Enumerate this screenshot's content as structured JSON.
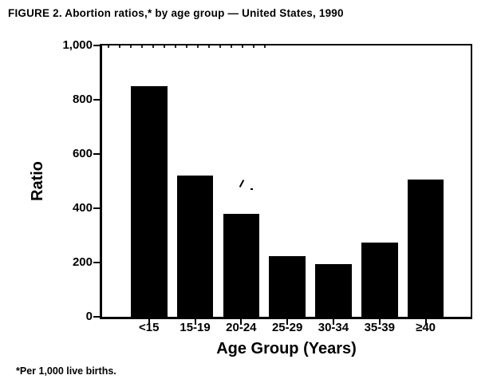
{
  "title": "FIGURE 2. Abortion ratios,* by age group — United States, 1990",
  "footnote": "*Per 1,000 live births.",
  "chart_data": {
    "type": "bar",
    "title": "FIGURE 2. Abortion ratios,* by age group — United States, 1990",
    "categories": [
      "<15",
      "15-19",
      "20-24",
      "25-29",
      "30-34",
      "35-39",
      "≥40"
    ],
    "values": [
      850,
      520,
      380,
      225,
      195,
      275,
      505
    ],
    "xlabel": "Age Group (Years)",
    "ylabel": "Ratio",
    "ylim": [
      0,
      1000
    ],
    "yticks": [
      {
        "value": 0,
        "label": "0"
      },
      {
        "value": 200,
        "label": "200"
      },
      {
        "value": 400,
        "label": "400"
      },
      {
        "value": 600,
        "label": "600"
      },
      {
        "value": 800,
        "label": "800"
      },
      {
        "value": 1000,
        "label": "1,000"
      }
    ],
    "bar_color": "#000000",
    "grid": false,
    "legend_position": "none",
    "footnote": "*Per 1,000 live births."
  }
}
